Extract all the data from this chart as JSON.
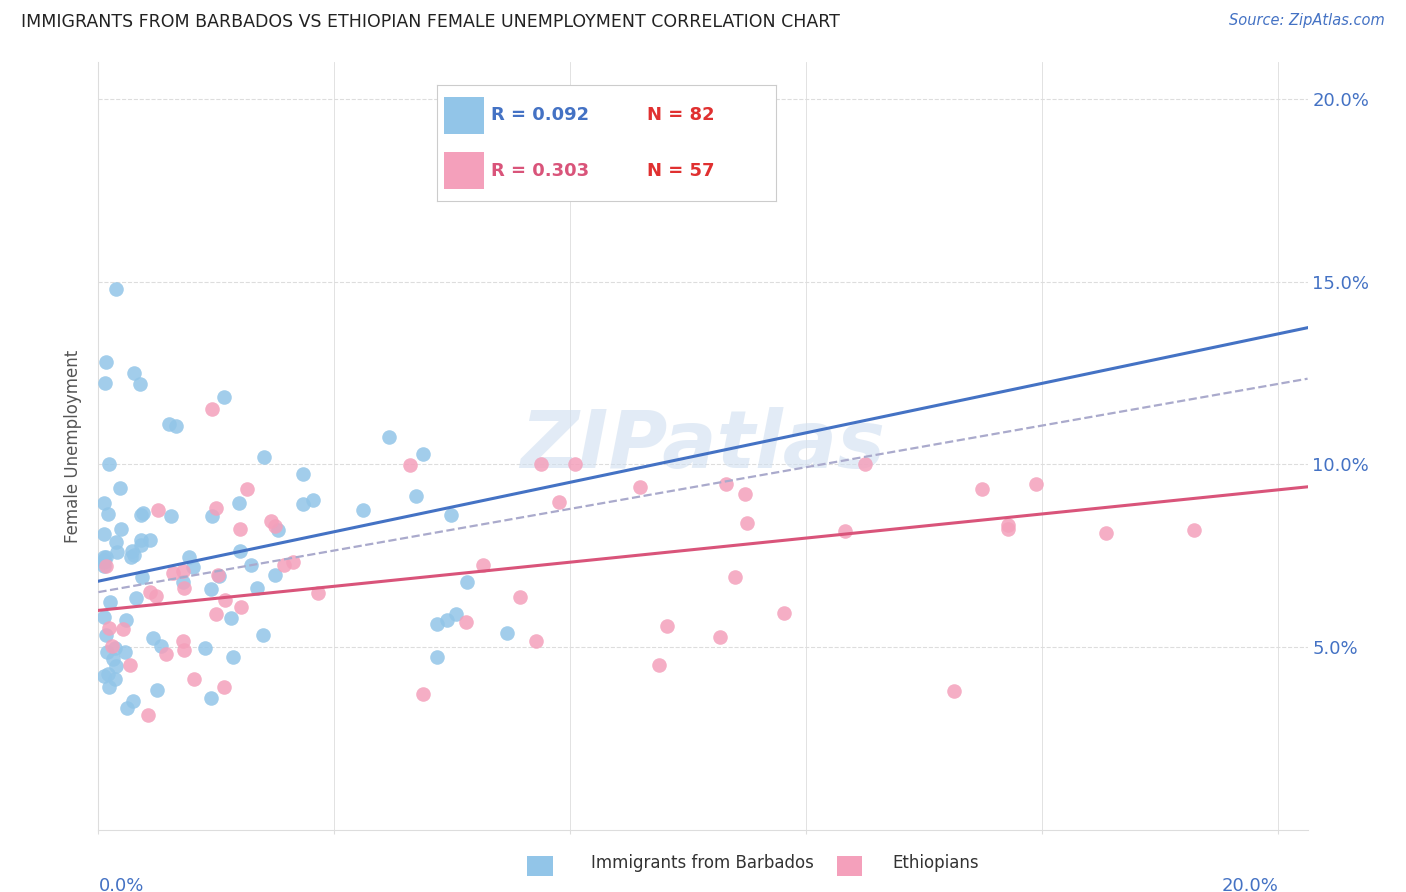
{
  "title": "IMMIGRANTS FROM BARBADOS VS ETHIOPIAN FEMALE UNEMPLOYMENT CORRELATION CHART",
  "source": "Source: ZipAtlas.com",
  "ylabel": "Female Unemployment",
  "xlim": [
    0.0,
    0.205
  ],
  "ylim": [
    0.0,
    0.21
  ],
  "yticks": [
    0.05,
    0.1,
    0.15,
    0.2
  ],
  "ytick_labels": [
    "5.0%",
    "10.0%",
    "15.0%",
    "20.0%"
  ],
  "xticks": [
    0.0,
    0.04,
    0.08,
    0.12,
    0.16,
    0.2
  ],
  "blue_color": "#92C5E8",
  "pink_color": "#F4A0BB",
  "blue_line_color": "#4472C4",
  "pink_line_color": "#D9547A",
  "dash_line_color": "#AAAACC",
  "axis_label_color": "#4472C4",
  "title_color": "#222222",
  "grid_color": "#DDDDDD",
  "watermark_color": "#D0DFF0",
  "background_color": "#FFFFFF",
  "blue_line_x0": 0.0,
  "blue_line_y0": 0.068,
  "blue_line_x1": 0.065,
  "blue_line_y1": 0.09,
  "pink_line_x0": 0.0,
  "pink_line_y0": 0.06,
  "pink_line_x1": 0.2,
  "pink_line_y1": 0.093,
  "dash_line_x0": 0.0,
  "dash_line_y0": 0.065,
  "dash_line_x1": 0.2,
  "dash_line_y1": 0.122
}
